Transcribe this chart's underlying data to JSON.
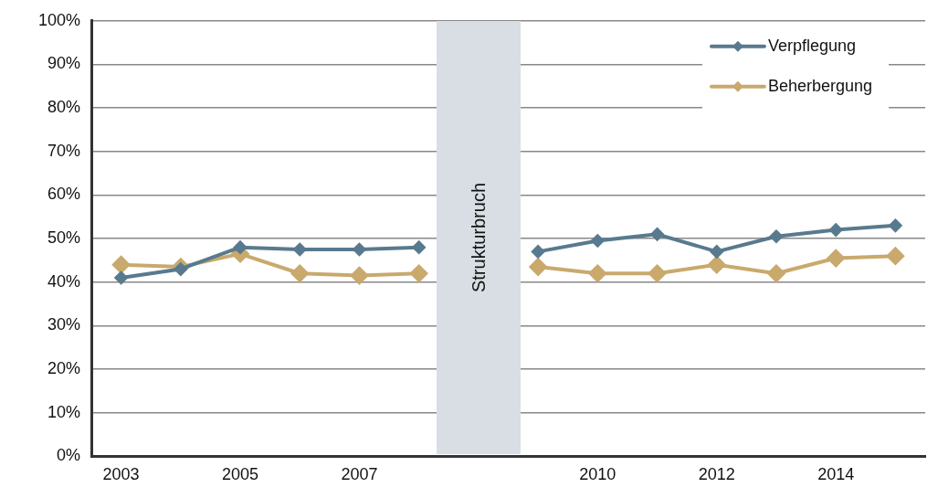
{
  "chart_data": {
    "type": "line",
    "categories": [
      "2003",
      null,
      "2005",
      null,
      "2007",
      null,
      null,
      null,
      "2010",
      null,
      "2012",
      null,
      "2014",
      null
    ],
    "series": [
      {
        "name": "Verpflegung",
        "color": "#587a8e",
        "values": [
          41,
          43,
          48,
          47.5,
          47.5,
          48,
          null,
          47,
          49.5,
          51,
          47,
          50.5,
          52,
          53
        ]
      },
      {
        "name": "Beherbergung",
        "color": "#c9a96c",
        "values": [
          44,
          43.5,
          46.5,
          42,
          41.5,
          42,
          null,
          43.5,
          42,
          42,
          44,
          42,
          45.5,
          46
        ]
      }
    ],
    "ylim": [
      0,
      100
    ],
    "yticks": [
      {
        "value": 0,
        "label": "0%"
      },
      {
        "value": 10,
        "label": "10%"
      },
      {
        "value": 20,
        "label": "20%"
      },
      {
        "value": 30,
        "label": "30%"
      },
      {
        "value": 40,
        "label": "40%"
      },
      {
        "value": 50,
        "label": "50%"
      },
      {
        "value": 60,
        "label": "60%"
      },
      {
        "value": 70,
        "label": "70%"
      },
      {
        "value": 80,
        "label": "80%"
      },
      {
        "value": 90,
        "label": "90%"
      },
      {
        "value": 100,
        "label": "100%"
      }
    ],
    "annotations": [
      "Strukturbruch"
    ],
    "grid": "y",
    "legend": "top right",
    "marker": "diamond",
    "line_style": "solid"
  }
}
